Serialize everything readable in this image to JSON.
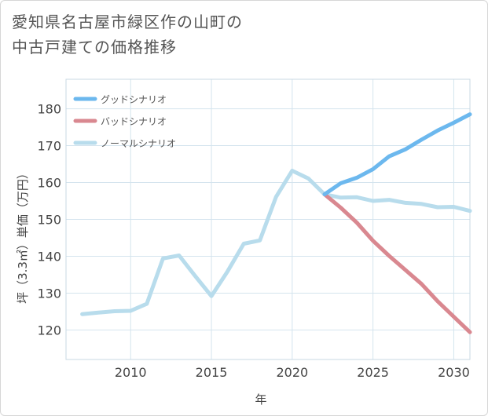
{
  "chart_data": {
    "type": "line",
    "title": "愛知県名古屋市緑区作の山町の\n中古戸建ての価格推移",
    "xlabel": "年",
    "ylabel": "坪（3.3㎡）単価（万円）",
    "xlim": [
      2006,
      2031
    ],
    "ylim": [
      112,
      188
    ],
    "xticks": [
      2010,
      2015,
      2020,
      2025,
      2030
    ],
    "yticks": [
      120,
      130,
      140,
      150,
      160,
      170,
      180
    ],
    "grid": true,
    "legend_position": "top-left",
    "series": [
      {
        "name": "グッドシナリオ",
        "color": "#6cb8ee",
        "x": [
          2022,
          2023,
          2024,
          2025,
          2026,
          2027,
          2028,
          2029,
          2030,
          2031
        ],
        "values": [
          156.8,
          159.8,
          161.3,
          163.6,
          167.1,
          169.0,
          171.6,
          174.1,
          176.2,
          178.5
        ]
      },
      {
        "name": "バッドシナリオ",
        "color": "#d98890",
        "x": [
          2022,
          2023,
          2024,
          2025,
          2026,
          2027,
          2028,
          2029,
          2030,
          2031
        ],
        "values": [
          156.8,
          153.2,
          149.1,
          144.2,
          140.1,
          136.3,
          132.5,
          127.8,
          123.6,
          119.4
        ]
      },
      {
        "name": "ノーマルシナリオ",
        "color": "#b8dcec",
        "x": [
          2007,
          2008,
          2009,
          2010,
          2011,
          2012,
          2013,
          2014,
          2015,
          2016,
          2017,
          2018,
          2019,
          2020,
          2021,
          2022,
          2023,
          2024,
          2025,
          2026,
          2027,
          2028,
          2029,
          2030,
          2031
        ],
        "values": [
          124.3,
          124.7,
          125.1,
          125.2,
          127.1,
          139.4,
          140.2,
          134.6,
          129.2,
          135.9,
          143.4,
          144.3,
          156.1,
          163.2,
          161.1,
          156.8,
          155.9,
          156.0,
          155.0,
          155.3,
          154.5,
          154.2,
          153.3,
          153.4,
          152.3
        ]
      }
    ]
  }
}
